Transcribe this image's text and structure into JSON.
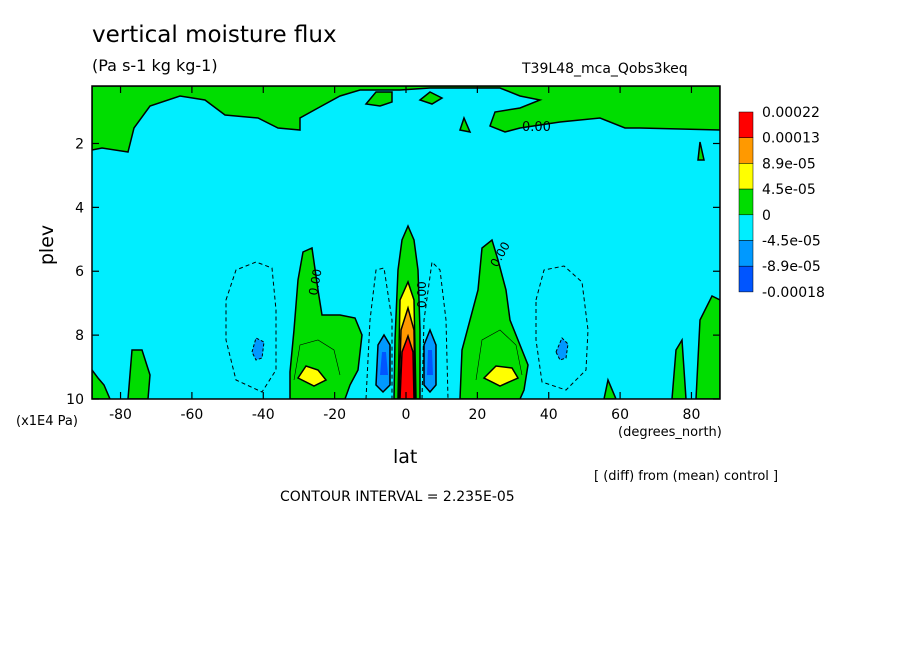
{
  "chart_data": {
    "type": "heatmap",
    "title": "vertical moisture flux",
    "units": "(Pa s-1 kg kg-1)",
    "run_label": "T39L48_mca_Qobs3keq",
    "xlabel": "lat",
    "x_unit": "(degrees_north)",
    "ylabel": "plev",
    "y_unit": "(x1E4 Pa)",
    "xlim": [
      -88,
      88
    ],
    "ylim": [
      10,
      0.2
    ],
    "xticks": [
      -80,
      -60,
      -40,
      -20,
      0,
      20,
      40,
      60,
      80
    ],
    "yticks": [
      2,
      4,
      6,
      8,
      10
    ],
    "contour_labels": [
      "0.00",
      "0.00",
      "0.00",
      "0.00"
    ],
    "legend": {
      "levels": [
        "0.00022",
        "0.00013",
        "8.9e-05",
        "4.5e-05",
        "0",
        "-4.5e-05",
        "-8.9e-05",
        "-0.00018"
      ],
      "colors": [
        "#ff0000",
        "#ff9900",
        "#ffff00",
        "#00dd00",
        "#00eeff",
        "#0099ff",
        "#0055ff"
      ]
    },
    "contour_interval": "CONTOUR INTERVAL = 2.235E-05",
    "note": "[ (diff) from (mean) control ]"
  }
}
